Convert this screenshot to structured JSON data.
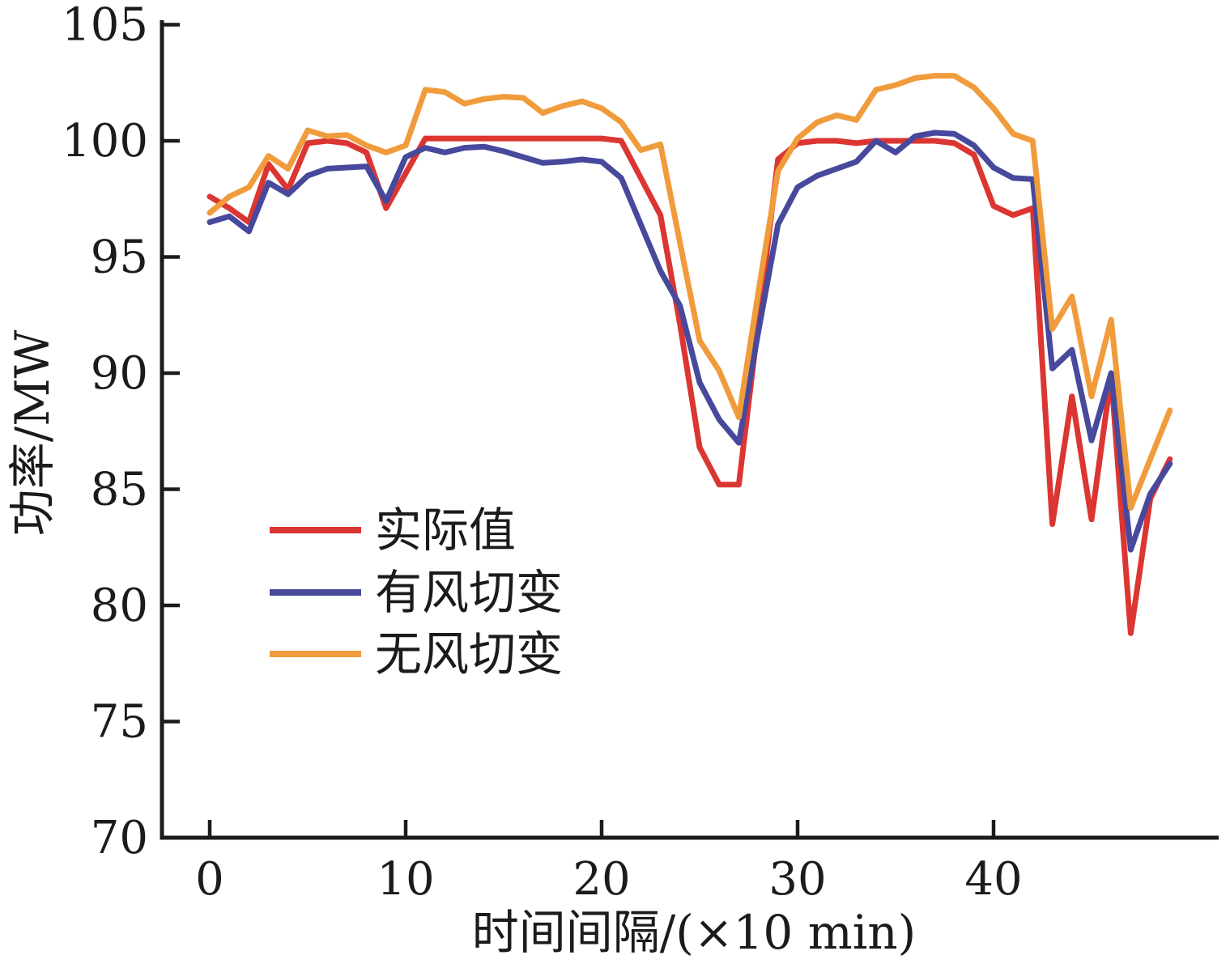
{
  "chart_data": {
    "type": "line",
    "title": "",
    "xlabel": "时间间隔/(×10 min)",
    "ylabel": "功率/MW",
    "x_ticks": [
      0,
      10,
      20,
      30,
      40
    ],
    "y_ticks": [
      70,
      75,
      80,
      85,
      90,
      95,
      100,
      105
    ],
    "xlim": [
      0,
      49
    ],
    "ylim": [
      70,
      105
    ],
    "grid": false,
    "legend_position": "inside-left-middle",
    "axis_color": "#1b1b1b",
    "x": [
      0,
      1,
      2,
      3,
      4,
      5,
      6,
      7,
      8,
      9,
      10,
      11,
      12,
      13,
      14,
      15,
      16,
      17,
      18,
      19,
      20,
      21,
      22,
      23,
      24,
      25,
      26,
      27,
      28,
      29,
      30,
      31,
      32,
      33,
      34,
      35,
      36,
      37,
      38,
      39,
      40,
      41,
      42,
      43,
      44,
      45,
      46,
      47,
      48,
      49
    ],
    "series": [
      {
        "name": "实际值",
        "color": "#DB3632",
        "values": [
          97.6,
          97.1,
          96.5,
          99.0,
          97.9,
          99.9,
          100.0,
          99.9,
          99.5,
          97.1,
          98.6,
          100.1,
          100.1,
          100.1,
          100.1,
          100.1,
          100.1,
          100.1,
          100.1,
          100.1,
          100.1,
          100.0,
          98.4,
          96.8,
          92.1,
          86.8,
          85.2,
          85.2,
          92.2,
          99.2,
          99.9,
          100.0,
          100.0,
          99.9,
          100.0,
          100.0,
          100.0,
          100.0,
          99.9,
          99.4,
          97.2,
          96.8,
          97.1,
          83.5,
          89.0,
          83.7,
          89.9,
          78.8,
          84.6,
          86.3
        ]
      },
      {
        "name": "有风切变",
        "color": "#46499C",
        "values": [
          96.5,
          96.75,
          96.1,
          98.2,
          97.7,
          98.5,
          98.8,
          98.85,
          98.9,
          97.4,
          99.3,
          99.7,
          99.5,
          99.7,
          99.75,
          99.55,
          99.3,
          99.05,
          99.1,
          99.2,
          99.1,
          98.4,
          96.4,
          94.4,
          92.9,
          89.6,
          88.0,
          87.0,
          91.8,
          96.4,
          98.0,
          98.5,
          98.8,
          99.1,
          100.0,
          99.5,
          100.2,
          100.35,
          100.3,
          99.8,
          98.85,
          98.4,
          98.35,
          90.2,
          91.0,
          87.1,
          90.0,
          82.4,
          84.8,
          86.1
        ]
      },
      {
        "name": "无风切变",
        "color": "#F09C3D",
        "values": [
          96.9,
          97.6,
          98.0,
          99.35,
          98.8,
          100.45,
          100.2,
          100.25,
          99.8,
          99.5,
          99.8,
          102.2,
          102.1,
          101.6,
          101.8,
          101.9,
          101.85,
          101.2,
          101.5,
          101.7,
          101.4,
          100.8,
          99.6,
          99.85,
          95.6,
          91.4,
          90.1,
          88.1,
          93.5,
          98.7,
          100.1,
          100.8,
          101.1,
          100.9,
          102.2,
          102.4,
          102.7,
          102.8,
          102.8,
          102.3,
          101.4,
          100.3,
          100.0,
          91.9,
          93.3,
          89.0,
          92.3,
          84.2,
          86.3,
          88.4
        ]
      }
    ]
  }
}
